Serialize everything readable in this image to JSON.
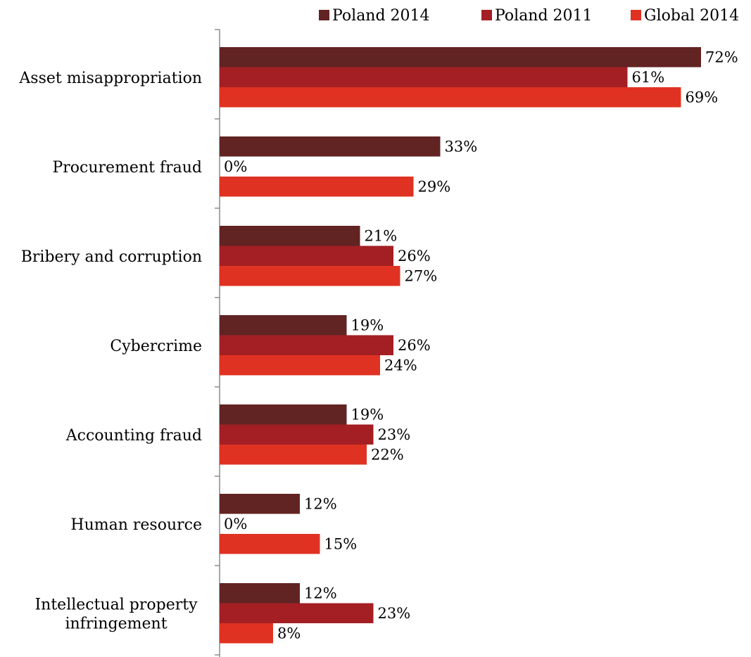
{
  "chart_data": {
    "type": "bar",
    "orientation": "horizontal",
    "title": "",
    "xlabel": "",
    "ylabel": "",
    "xlim": [
      0,
      75
    ],
    "grid": false,
    "legend_position": "top-right",
    "value_suffix": "%",
    "categories": [
      [
        "Asset misappropriation"
      ],
      [
        "Procurement fraud"
      ],
      [
        "Bribery and corruption"
      ],
      [
        "Cybercrime"
      ],
      [
        "Accounting fraud"
      ],
      [
        "Human resource"
      ],
      [
        "Intellectual property",
        "infringement"
      ]
    ],
    "series": [
      {
        "name": "Poland 2014",
        "color": "#622323",
        "values": [
          72,
          33,
          21,
          19,
          19,
          12,
          12
        ]
      },
      {
        "name": "Poland 2011",
        "color": "#a31f24",
        "values": [
          61,
          0,
          26,
          26,
          23,
          0,
          23
        ]
      },
      {
        "name": "Global 2014",
        "color": "#e03222",
        "values": [
          69,
          29,
          27,
          24,
          22,
          15,
          8
        ]
      }
    ]
  }
}
